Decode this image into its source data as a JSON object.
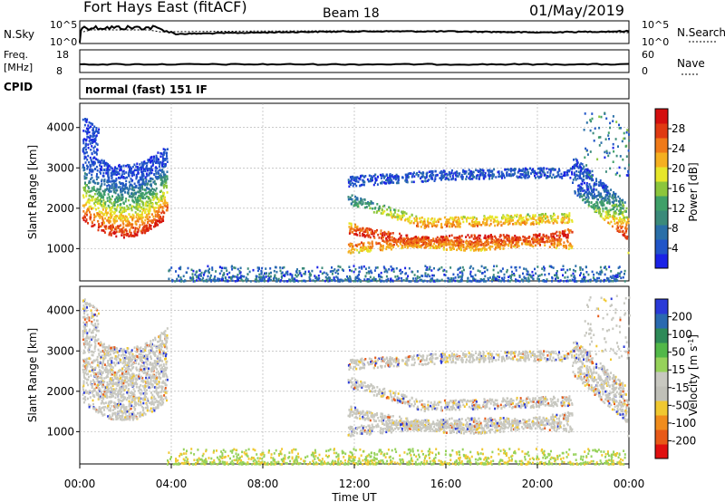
{
  "header": {
    "station": "Fort Hays East (fitACF)",
    "beam": "Beam 18",
    "date": "01/May/2019"
  },
  "noise_panel": {
    "left_label": "N.Sky",
    "right_label": "N.Search",
    "ticks_left": [
      "10^5",
      "10^0"
    ],
    "ticks_right": [
      "10^5",
      "10^0"
    ]
  },
  "freq_panel": {
    "left_label_1": "Freq.",
    "left_label_2": "[MHz]",
    "right_label": "Nave",
    "ticks_left": [
      "18",
      "8"
    ],
    "ticks_right": [
      "60",
      "0"
    ]
  },
  "cpid": {
    "label": "CPID",
    "mode": "normal (fast) 151 IF"
  },
  "colors": {
    "power_scale": [
      "#1a22e6",
      "#2155c8",
      "#2a6fa8",
      "#3b8a7a",
      "#3fa068",
      "#8cc63c",
      "#e6e62a",
      "#f5b020",
      "#f07a18",
      "#e03a12",
      "#d40f0f"
    ],
    "velocity_scale": [
      "#2a3ad8",
      "#2a6ab0",
      "#2e8a58",
      "#52b848",
      "#96d25a",
      "#c8c8c0",
      "#c0c0b8",
      "#f0c830",
      "#f08c1c",
      "#e85a18",
      "#e01010"
    ]
  },
  "chart_data": [
    {
      "type": "heatmap",
      "name": "power",
      "ylabel": "Slant Range [km]",
      "yticks": [
        "1000",
        "2000",
        "3000",
        "4000"
      ],
      "ylim": [
        200,
        4600
      ],
      "xlim": [
        0,
        24
      ],
      "colorbar_label": "Power [dB]",
      "colorbar_ticks": [
        "4",
        "8",
        "12",
        "16",
        "20",
        "24",
        "28"
      ],
      "colorbar_range": [
        0,
        32
      ],
      "grid": true
    },
    {
      "type": "heatmap",
      "name": "velocity",
      "ylabel": "Slant Range [km]",
      "yticks": [
        "1000",
        "2000",
        "3000",
        "4000"
      ],
      "ylim": [
        200,
        4600
      ],
      "xlim": [
        0,
        24
      ],
      "colorbar_label": "Velocity [m s",
      "colorbar_label_sup": "-1",
      "colorbar_label_end": "]",
      "colorbar_ticks": [
        "200",
        "100",
        "50",
        "15",
        "-15",
        "-50",
        "-100",
        "-200"
      ],
      "grid": true
    }
  ],
  "xaxis": {
    "ticks": [
      "00:00",
      "04:00",
      "08:00",
      "12:00",
      "16:00",
      "20:00",
      "00:00"
    ],
    "label": "Time UT"
  }
}
